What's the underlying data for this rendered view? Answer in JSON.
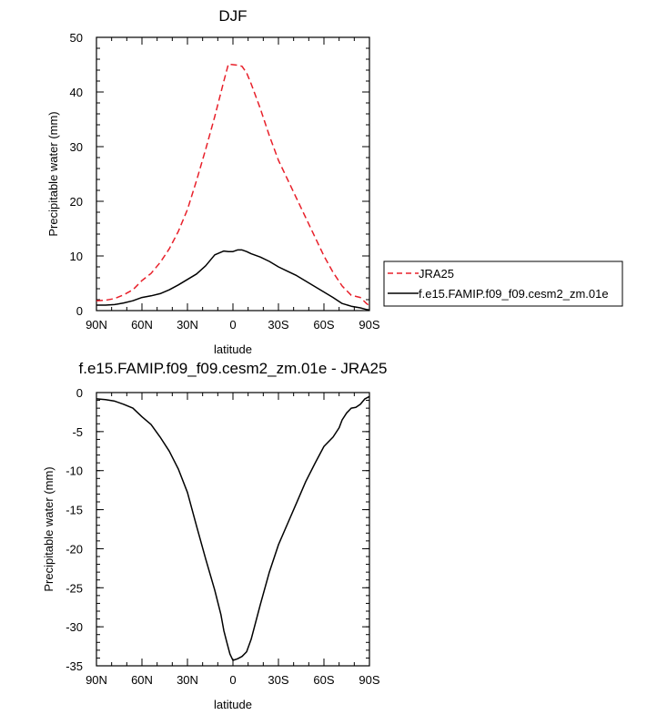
{
  "chart_data": [
    {
      "type": "line",
      "title": "DJF",
      "xlabel": "latitude",
      "ylabel": "Precipitable water (mm)",
      "xlim": [
        90,
        -90
      ],
      "ylim": [
        0,
        50
      ],
      "x_ticks": [
        90,
        60,
        30,
        0,
        -30,
        -60,
        -90
      ],
      "x_tick_labels": [
        "90N",
        "60N",
        "30N",
        "0",
        "30S",
        "60S",
        "90S"
      ],
      "y_ticks": [
        0,
        10,
        20,
        30,
        40,
        50
      ],
      "y_tick_labels": [
        "0",
        "10",
        "20",
        "30",
        "40",
        "50"
      ],
      "legend_position": "right",
      "series": [
        {
          "name": "JRA25",
          "color": "#e8202a",
          "dash": "dashed",
          "x": [
            90,
            84,
            78,
            72,
            66,
            60,
            54,
            48,
            42,
            36,
            30,
            24,
            18,
            12,
            6,
            3,
            0,
            -3,
            -6,
            -9,
            -12,
            -18,
            -24,
            -30,
            -36,
            -42,
            -48,
            -54,
            -60,
            -66,
            -72,
            -78,
            -84,
            -88,
            -90
          ],
          "y": [
            1.8,
            1.9,
            2.2,
            2.9,
            3.8,
            5.5,
            6.8,
            8.8,
            11.3,
            14.5,
            18.5,
            23.8,
            29.5,
            35.5,
            42.0,
            45.1,
            45.0,
            44.9,
            44.7,
            43.5,
            41.5,
            37.0,
            32.0,
            27.5,
            24.0,
            20.5,
            17.0,
            13.5,
            10.0,
            7.0,
            4.5,
            2.8,
            2.4,
            1.3,
            0.9
          ]
        },
        {
          "name": "f.e15.FAMIP.f09_f09.cesm2_zm.01e",
          "color": "#000000",
          "dash": "solid",
          "x": [
            90,
            84,
            78,
            72,
            66,
            60,
            54,
            48,
            42,
            36,
            30,
            24,
            18,
            12,
            6,
            3,
            0,
            -3,
            -6,
            -9,
            -12,
            -18,
            -24,
            -30,
            -36,
            -42,
            -48,
            -54,
            -60,
            -66,
            -72,
            -78,
            -84,
            -88,
            -90
          ],
          "y": [
            1.0,
            1.0,
            1.1,
            1.4,
            1.8,
            2.4,
            2.7,
            3.1,
            3.8,
            4.7,
            5.7,
            6.7,
            8.2,
            10.2,
            10.9,
            10.8,
            10.8,
            11.1,
            11.1,
            10.8,
            10.4,
            9.8,
            9.0,
            8.0,
            7.2,
            6.4,
            5.4,
            4.4,
            3.4,
            2.4,
            1.3,
            0.8,
            0.5,
            0.2,
            0.1
          ]
        }
      ]
    },
    {
      "type": "line",
      "title": "f.e15.FAMIP.f09_f09.cesm2_zm.01e - JRA25",
      "xlabel": "latitude",
      "ylabel": "Precipitable water (mm)",
      "xlim": [
        90,
        -90
      ],
      "ylim": [
        -35,
        0
      ],
      "x_ticks": [
        90,
        60,
        30,
        0,
        -30,
        -60,
        -90
      ],
      "x_tick_labels": [
        "90N",
        "60N",
        "30N",
        "0",
        "30S",
        "60S",
        "90S"
      ],
      "y_ticks": [
        0,
        -5,
        -10,
        -15,
        -20,
        -25,
        -30,
        -35
      ],
      "y_tick_labels": [
        "0",
        "-5",
        "-10",
        "-15",
        "-20",
        "-25",
        "-30",
        "-35"
      ],
      "series": [
        {
          "color": "#000000",
          "dash": "solid",
          "x": [
            90,
            84,
            78,
            72,
            66,
            60,
            54,
            48,
            42,
            36,
            30,
            24,
            18,
            12,
            8,
            6,
            4,
            2,
            0,
            -3,
            -6,
            -9,
            -12,
            -18,
            -24,
            -30,
            -36,
            -42,
            -48,
            -54,
            -60,
            -66,
            -70,
            -72,
            -75,
            -78,
            -81,
            -84,
            -87,
            -90
          ],
          "y": [
            -0.8,
            -0.9,
            -1.1,
            -1.5,
            -2.0,
            -3.1,
            -4.1,
            -5.7,
            -7.5,
            -9.8,
            -12.8,
            -17.1,
            -21.3,
            -25.3,
            -28.4,
            -30.5,
            -32.0,
            -33.5,
            -34.3,
            -34.1,
            -33.8,
            -33.2,
            -31.6,
            -27.2,
            -23.0,
            -19.5,
            -16.8,
            -14.1,
            -11.4,
            -9.1,
            -6.9,
            -5.7,
            -4.5,
            -3.5,
            -2.6,
            -2.0,
            -1.9,
            -1.5,
            -0.8,
            -0.5
          ]
        }
      ]
    }
  ]
}
